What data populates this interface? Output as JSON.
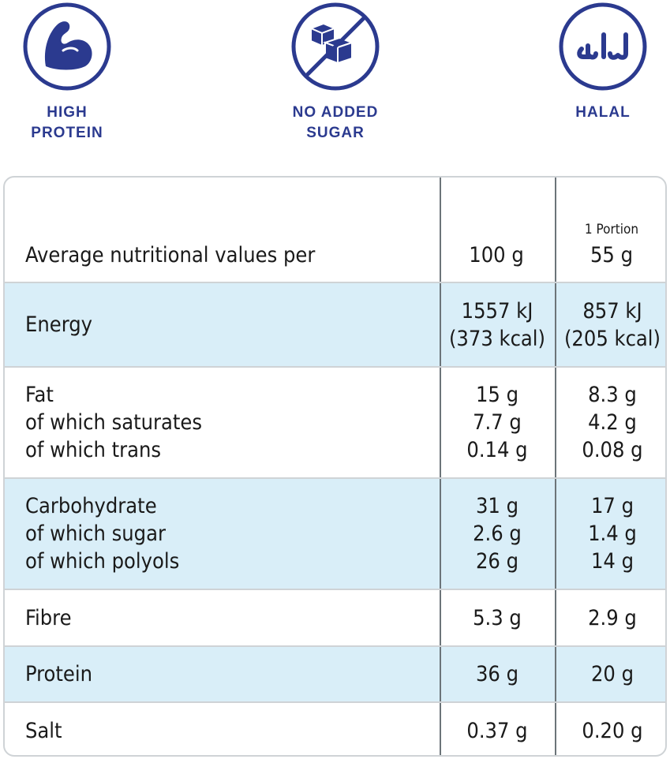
{
  "badges": {
    "protein": {
      "label": "HIGH\nPROTEIN",
      "icon": "flexed-arm-icon"
    },
    "sugar": {
      "label": "NO ADDED\nSUGAR",
      "icon": "sugar-cubes-crossed-icon"
    },
    "halal": {
      "label": "HALAL",
      "icon": "halal-arabic-icon"
    }
  },
  "colors": {
    "brand": "#2b3a8f",
    "shade": "#d9eef8",
    "border": "#cfd3d6"
  },
  "table": {
    "header": {
      "label": "Average nutritional values per",
      "col100": "100 g",
      "portion_caption": "1 Portion",
      "portion": "55 g"
    },
    "rows": [
      {
        "labels": [
          "Energy"
        ],
        "v100": [
          "1557 kJ",
          "(373 kcal)"
        ],
        "vpor": [
          "857 kJ",
          "(205 kcal)"
        ]
      },
      {
        "labels": [
          "Fat",
          "of which saturates",
          "of which trans"
        ],
        "v100": [
          "15 g",
          "7.7 g",
          "0.14 g"
        ],
        "vpor": [
          "8.3 g",
          "4.2 g",
          "0.08 g"
        ]
      },
      {
        "labels": [
          "Carbohydrate",
          "of which sugar",
          "of which polyols"
        ],
        "v100": [
          "31 g",
          "2.6 g",
          "26 g"
        ],
        "vpor": [
          "17 g",
          "1.4 g",
          "14 g"
        ]
      },
      {
        "labels": [
          "Fibre"
        ],
        "v100": [
          "5.3 g"
        ],
        "vpor": [
          "2.9 g"
        ]
      },
      {
        "labels": [
          "Protein"
        ],
        "v100": [
          "36 g"
        ],
        "vpor": [
          "20 g"
        ]
      },
      {
        "labels": [
          "Salt"
        ],
        "v100": [
          "0.37 g"
        ],
        "vpor": [
          "0.20 g"
        ]
      }
    ]
  }
}
